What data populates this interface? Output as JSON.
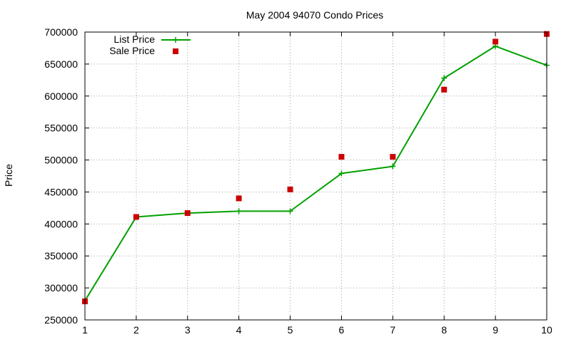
{
  "chart_data": {
    "type": "line",
    "title": "May 2004 94070 Condo Prices",
    "xlabel": "",
    "ylabel": "Price",
    "x": [
      1,
      2,
      3,
      4,
      5,
      6,
      7,
      8,
      9,
      10
    ],
    "xlim": [
      1,
      10
    ],
    "ylim": [
      250000,
      700000
    ],
    "xticks": [
      "1",
      "2",
      "3",
      "4",
      "5",
      "6",
      "7",
      "8",
      "9",
      "10"
    ],
    "yticks": [
      "250000",
      "300000",
      "350000",
      "400000",
      "450000",
      "500000",
      "550000",
      "600000",
      "650000",
      "700000"
    ],
    "grid": true,
    "legend_position": "top-left",
    "series": [
      {
        "name": "List Price",
        "style": "line-with-plus-markers",
        "color": "#00a000",
        "values": [
          280000,
          411000,
          417000,
          420000,
          420000,
          479000,
          490000,
          628000,
          678000,
          648000
        ]
      },
      {
        "name": "Sale Price",
        "style": "square-markers",
        "color": "#cc0000",
        "values": [
          279000,
          411000,
          417000,
          440000,
          454000,
          505000,
          505000,
          610000,
          685000,
          697000
        ]
      }
    ]
  }
}
